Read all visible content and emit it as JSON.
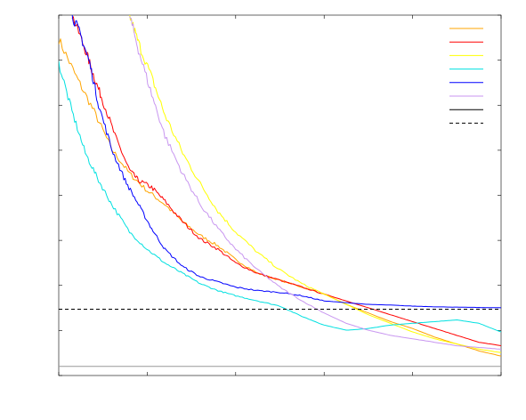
{
  "chart_data": {
    "type": "line",
    "title": "",
    "xlabel": "",
    "ylabel": "",
    "grid": false,
    "legend": "top-right",
    "x_ticks": 5,
    "y_ticks": 8,
    "xlim": [
      0,
      100
    ],
    "ylim": [
      0,
      100
    ],
    "series": [
      {
        "color": "#ffa500",
        "style": "solid",
        "x": [
          0,
          4,
          8,
          12,
          16,
          20,
          24,
          28,
          32,
          36,
          40,
          45,
          50,
          55,
          60,
          65,
          70,
          75,
          80,
          85,
          90,
          95,
          100
        ],
        "y": [
          93,
          82,
          72,
          61,
          54,
          49,
          45,
          40,
          36,
          33,
          29,
          25,
          23,
          21,
          19,
          16,
          13.5,
          11,
          9,
          6.5,
          4.5,
          2.5,
          1
        ]
      },
      {
        "color": "#ff0000",
        "style": "solid",
        "x": [
          3,
          6,
          8,
          10,
          13,
          16,
          18,
          21,
          24,
          28,
          32,
          36,
          40,
          45,
          50,
          55,
          60,
          65,
          70,
          75,
          80,
          85,
          90,
          95,
          100
        ],
        "y": [
          100,
          90,
          82,
          75,
          64,
          55,
          52,
          50,
          46,
          40,
          35,
          32,
          28,
          25,
          23,
          21,
          19,
          17,
          15,
          13,
          11,
          9,
          7,
          5,
          4
        ]
      },
      {
        "color": "#ffff00",
        "style": "solid",
        "x": [
          16,
          18,
          21,
          24,
          28,
          32,
          36,
          40,
          45,
          50,
          55,
          60,
          65,
          70,
          75,
          80,
          85,
          90,
          95,
          100
        ],
        "y": [
          100,
          92,
          82,
          71,
          60,
          51,
          43,
          37,
          31,
          26,
          22,
          19,
          16,
          13,
          10.5,
          8,
          6,
          4.5,
          3,
          2
        ]
      },
      {
        "color": "#00e0e0",
        "style": "solid",
        "x": [
          0,
          3,
          6,
          9,
          12,
          16,
          20,
          24,
          28,
          32,
          36,
          40,
          45,
          50,
          55,
          60,
          65,
          70,
          75,
          80,
          85,
          90,
          95,
          100
        ],
        "y": [
          86,
          72,
          60,
          52,
          45,
          37,
          32,
          28,
          25,
          22,
          20,
          18.5,
          17,
          15.5,
          12.5,
          10,
          8.5,
          9,
          10,
          10.5,
          11,
          11.5,
          10.5,
          8
        ]
      },
      {
        "color": "#0000ff",
        "style": "solid",
        "x": [
          3,
          5,
          7,
          9,
          12,
          15,
          18,
          21,
          24,
          28,
          32,
          36,
          40,
          45,
          50,
          55,
          60,
          65,
          70,
          75,
          80,
          85,
          90,
          95,
          100
        ],
        "y": [
          100,
          94,
          86,
          74,
          61,
          52,
          45,
          38,
          32,
          27,
          24,
          22.5,
          21,
          20,
          19.5,
          18.5,
          17,
          16.5,
          16,
          15.8,
          15.5,
          15.3,
          15.2,
          15.1,
          15
        ]
      },
      {
        "color": "#c896f0",
        "style": "solid",
        "x": [
          16,
          18,
          21,
          24,
          28,
          32,
          36,
          40,
          45,
          50,
          55,
          60,
          65,
          70,
          75,
          80,
          85,
          90,
          95,
          100
        ],
        "y": [
          100,
          90,
          77,
          65,
          54,
          45,
          38,
          32,
          26,
          21,
          17,
          13.5,
          10.5,
          8.5,
          7,
          6,
          5,
          4,
          3.5,
          3
        ]
      },
      {
        "color": "#000000",
        "style": "solid",
        "x": [
          0,
          100
        ],
        "y": [
          -2,
          -2
        ]
      },
      {
        "color": "#000000",
        "style": "dashed",
        "x": [
          0,
          100
        ],
        "y": [
          14.6,
          14.6
        ]
      }
    ]
  }
}
